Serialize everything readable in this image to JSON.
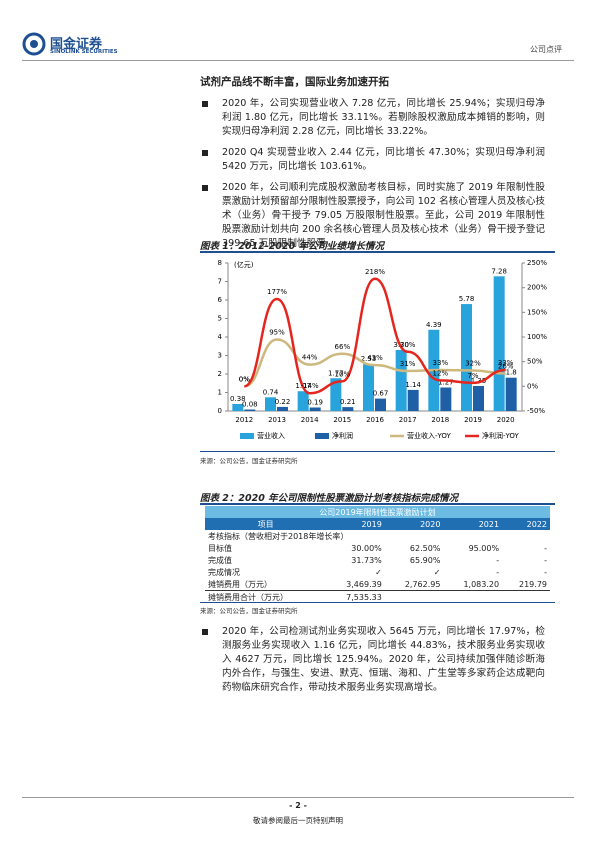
{
  "header": {
    "logo_cn": "国金证券",
    "logo_en": "SINOLINK SECURITIES",
    "doc_type": "公司点评"
  },
  "section_title": "试剂产品线不断丰富，国际业务加速开拓",
  "bullets": [
    "2020 年，公司实现营业收入 7.28 亿元，同比增长 25.94%；实现归母净利润 1.80 亿元，同比增长 33.11%。若剔除股权激励成本摊销的影响，则实现归母净利润 2.28 亿元，同比增长 33.22%。",
    "2020 Q4 实现营业收入 2.44 亿元，同比增长 47.30%；实现归母净利润 5420 万元，同比增长 103.61%。",
    "2020 年，公司顺利完成股权激励考核目标，同时实施了 2019 年限制性股票激励计划预留部分限制性股票授予，向公司 102 名核心管理人员及核心技术（业务）骨干授予 79.05 万股限制性股票。至此，公司 2019 年限制性股票激励计划共向 200 余名核心管理人员及核心技术（业务）骨干授予登记 399.65 万股限制性股票。"
  ],
  "figure1": {
    "title": "图表 1：2012-2020 年公司业绩增长情况",
    "source": "来源：公司公告，国金证券研究所",
    "chart_data": {
      "type": "bar-line",
      "y_unit": "(亿元)",
      "categories": [
        "2012",
        "2013",
        "2014",
        "2015",
        "2016",
        "2017",
        "2018",
        "2019",
        "2020"
      ],
      "series": [
        {
          "name": "营业收入",
          "color": "#29a3dc",
          "values": [
            0.38,
            0.74,
            1.07,
            1.77,
            2.53,
            3.3,
            4.39,
            5.78,
            7.28
          ],
          "value_labels": [
            "0.38",
            "0.74",
            "1.07",
            "1.77",
            "2.53",
            "3.30",
            "4.39",
            "5.78",
            "7.28"
          ]
        },
        {
          "name": "净利润",
          "color": "#1f5fa6",
          "values": [
            0.08,
            0.22,
            0.19,
            0.21,
            0.67,
            1.14,
            1.27,
            1.35,
            1.8
          ]
        },
        {
          "name": "营业收入-YOY",
          "color": "#cdb87e",
          "axis": "y2",
          "values": [
            0,
            95,
            44,
            66,
            43,
            31,
            33,
            32,
            26
          ],
          "value_labels": [
            "0%",
            "95%",
            "44%",
            "66%",
            "43%",
            "31%",
            "33%",
            "32%",
            "26%"
          ]
        },
        {
          "name": "净利润-YOY",
          "color": "#e5261f",
          "axis": "y2",
          "values": [
            0,
            177,
            -14,
            10,
            218,
            70,
            12,
            7,
            33
          ],
          "value_labels": [
            "0%",
            "177%",
            "-14%",
            "10%",
            "218%",
            "70%",
            "12%",
            "7%",
            "33%"
          ]
        }
      ],
      "ylim": [
        0,
        8
      ],
      "yticks": [
        0,
        1,
        2,
        3,
        4,
        5,
        6,
        7,
        8
      ],
      "y2lim": [
        -50,
        250
      ],
      "y2ticks": [
        {
          "value": -50,
          "label": "-50%"
        },
        {
          "value": 0,
          "label": "0%"
        },
        {
          "value": 50,
          "label": "50%"
        },
        {
          "value": 100,
          "label": "100%"
        },
        {
          "value": 150,
          "label": "150%"
        },
        {
          "value": 200,
          "label": "200%"
        },
        {
          "value": 250,
          "label": "250%"
        }
      ],
      "legend": "bottom"
    }
  },
  "figure2": {
    "title": "图表 2：2020 年公司限制性股票激励计划考核指标完成情况",
    "source": "来源：公司公告，国金证券研究所",
    "table": {
      "caption": "公司2019年限制性股票激励计划",
      "header": [
        "项目",
        "2019",
        "2020",
        "2021",
        "2022"
      ],
      "rows": [
        [
          "考核指标（营收相对于2018年增长率）"
        ],
        [
          "目标值",
          "30.00%",
          "62.50%",
          "95.00%",
          "-"
        ],
        [
          "完成值",
          "31.73%",
          "65.90%",
          "-",
          "-"
        ],
        [
          "完成情况",
          "✓",
          "✓",
          "-",
          "-"
        ],
        [
          "摊销费用（万元）",
          "3,469.39",
          "2,762.95",
          "1,083.20",
          "219.79"
        ],
        [
          "摊销费用合计（万元）",
          "7,535.33"
        ]
      ]
    }
  },
  "bullets2": [
    "2020 年，公司检测试剂业务实现收入 5645 万元，同比增长 17.97%，检测服务业务实现收入 1.16 亿元，同比增长 44.83%，技术服务业务实现收入 4627 万元，同比增长 125.94%。2020 年，公司持续加强伴随诊断海内外合作，与强生、安进、默克、恒瑞、海和、广生堂等多家药企达成靶向药物临床研究合作，带动技术服务业务实现高增长。"
  ],
  "footer": {
    "page": "- 2 -",
    "disclaimer": "敬请参阅最后一页特别声明"
  }
}
